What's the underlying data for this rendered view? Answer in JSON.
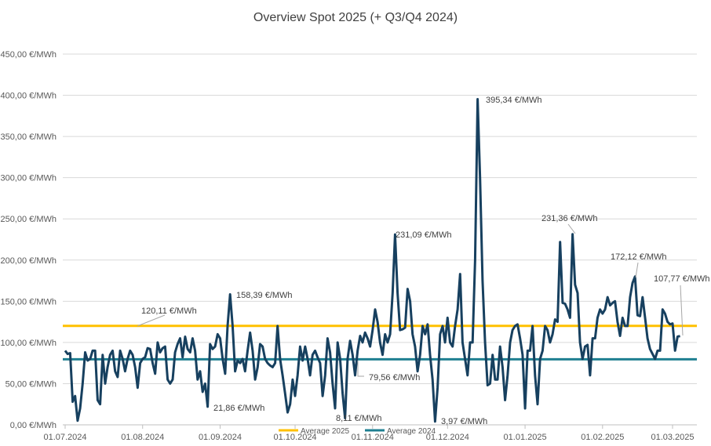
{
  "chart_data": {
    "type": "line",
    "title": "Overview Spot 2025 (+ Q3/Q4 2024)",
    "xlabel": "",
    "ylabel": "",
    "ylim": [
      0,
      450
    ],
    "y_ticks": [
      "0,00 €/MWh",
      "50,00 €/MWh",
      "100,00 €/MWh",
      "150,00 €/MWh",
      "200,00 €/MWh",
      "250,00 €/MWh",
      "300,00 €/MWh",
      "350,00 €/MWh",
      "400,00 €/MWh",
      "450,00 €/MWh"
    ],
    "x_ticks": [
      "01.07.2024",
      "01.08.2024",
      "01.09.2024",
      "01.10.2024",
      "01.11.2024",
      "01.12.2024",
      "01.01.2025",
      "01.02.2025",
      "01.03.2025"
    ],
    "x_start": "01.07.2024",
    "x_step": "1 day",
    "grid": true,
    "legend_position": "bottom",
    "series": [
      {
        "color": "#17405f",
        "values": [
          90,
          86,
          87,
          28,
          35,
          5,
          20,
          50,
          88,
          78,
          80,
          90,
          90,
          30,
          25,
          85,
          50,
          70,
          85,
          90,
          65,
          58,
          90,
          80,
          65,
          80,
          90,
          85,
          70,
          45,
          75,
          80,
          82,
          93,
          92,
          75,
          62,
          100,
          88,
          93,
          95,
          55,
          50,
          55,
          88,
          98,
          105,
          82,
          107,
          92,
          88,
          105,
          90,
          55,
          65,
          40,
          50,
          22,
          98,
          92,
          95,
          110,
          105,
          80,
          62,
          120,
          158.39,
          120,
          65,
          78,
          75,
          80,
          65,
          90,
          112,
          90,
          55,
          70,
          98,
          95,
          80,
          75,
          72,
          70,
          75,
          120,
          80,
          60,
          38,
          15,
          25,
          55,
          35,
          60,
          95,
          78,
          95,
          80,
          60,
          85,
          90,
          82,
          75,
          35,
          60,
          105,
          88,
          50,
          20,
          100,
          80,
          38,
          8.11,
          80,
          102,
          85,
          60,
          90,
          108,
          100,
          112,
          105,
          95,
          115,
          140,
          125,
          100,
          85,
          110,
          100,
          110,
          160,
          231.09,
          160,
          115,
          116,
          118,
          165,
          150,
          110,
          95,
          65,
          85,
          120,
          110,
          122,
          85,
          55,
          3.97,
          45,
          110,
          120,
          100,
          130,
          100,
          95,
          120,
          140,
          183,
          100,
          80,
          60,
          100,
          100,
          200,
          395.34,
          300,
          175,
          100,
          48,
          50,
          85,
          55,
          55,
          95,
          70,
          30,
          60,
          100,
          115,
          120,
          122,
          105,
          85,
          20,
          90,
          90,
          120,
          60,
          25,
          80,
          90,
          120,
          115,
          100,
          110,
          128,
          125,
          222,
          148,
          147,
          140,
          130,
          231.36,
          170,
          160,
          100,
          80,
          95,
          97,
          60,
          105,
          105,
          130,
          140,
          135,
          140,
          155,
          145,
          148,
          150,
          125,
          108,
          130,
          120,
          120,
          155,
          172.12,
          180,
          133,
          132,
          155,
          130,
          105,
          92,
          86,
          80,
          90,
          90,
          140,
          135,
          125,
          122,
          123,
          90,
          107,
          107.77
        ]
      },
      {
        "name": "Average 2025",
        "color": "#ffc000",
        "value": 120.11
      },
      {
        "name": "Average 2024",
        "color": "#1f7f91",
        "value": 79.56
      }
    ],
    "annotations": {
      "max_jul_sep": "158,39 €/MWh",
      "min_aug": "21,86 €/MWh",
      "min_oct": "8,11 €/MWh",
      "max_nov": "231,09 €/MWh",
      "min_nov": "3,97 €/MWh",
      "max_dec": "395,34 €/MWh",
      "max_jan": "231,36 €/MWh",
      "max_feb": "172,12 €/MWh",
      "last": "107,77 €/MWh",
      "avg2025": "120,11 €/MWh",
      "avg2024": "79,56 €/MWh"
    },
    "annotation_colors": {
      "avg2025": "#ffc000",
      "avg2024": "#4472c4"
    }
  }
}
